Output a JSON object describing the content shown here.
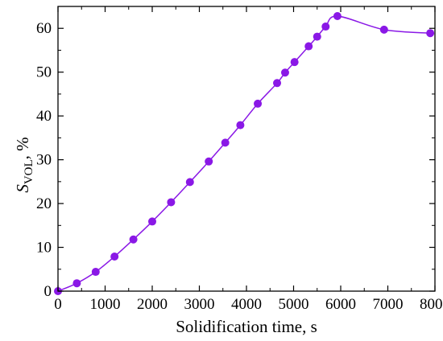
{
  "chart_data": {
    "type": "scatter",
    "title": "",
    "xlabel": "Solidification time, s",
    "ylabel": {
      "main": "S",
      "sub": "VOL",
      "suffix": ", %"
    },
    "xlim": [
      0,
      8000
    ],
    "ylim": [
      0,
      65
    ],
    "x_ticks": [
      0,
      1000,
      2000,
      3000,
      4000,
      5000,
      6000,
      7000,
      8000
    ],
    "y_ticks": [
      0,
      10,
      20,
      30,
      40,
      50,
      60
    ],
    "grid": false,
    "color": "#8a18e6",
    "marker_color": "#8a18e6",
    "series": [
      {
        "x": [
          0,
          400,
          800,
          1200,
          1600,
          2000,
          2400,
          2800,
          3200,
          3550,
          3870,
          4240,
          4650,
          4820,
          5020,
          5320,
          5500,
          5680,
          5930,
          6920,
          7900
        ],
        "y": [
          0,
          1.8,
          4.4,
          7.9,
          11.8,
          15.9,
          20.3,
          24.9,
          29.6,
          33.9,
          37.9,
          42.8,
          47.5,
          49.9,
          52.3,
          55.9,
          58.1,
          60.4,
          62.8,
          59.7,
          58.9
        ]
      }
    ]
  }
}
